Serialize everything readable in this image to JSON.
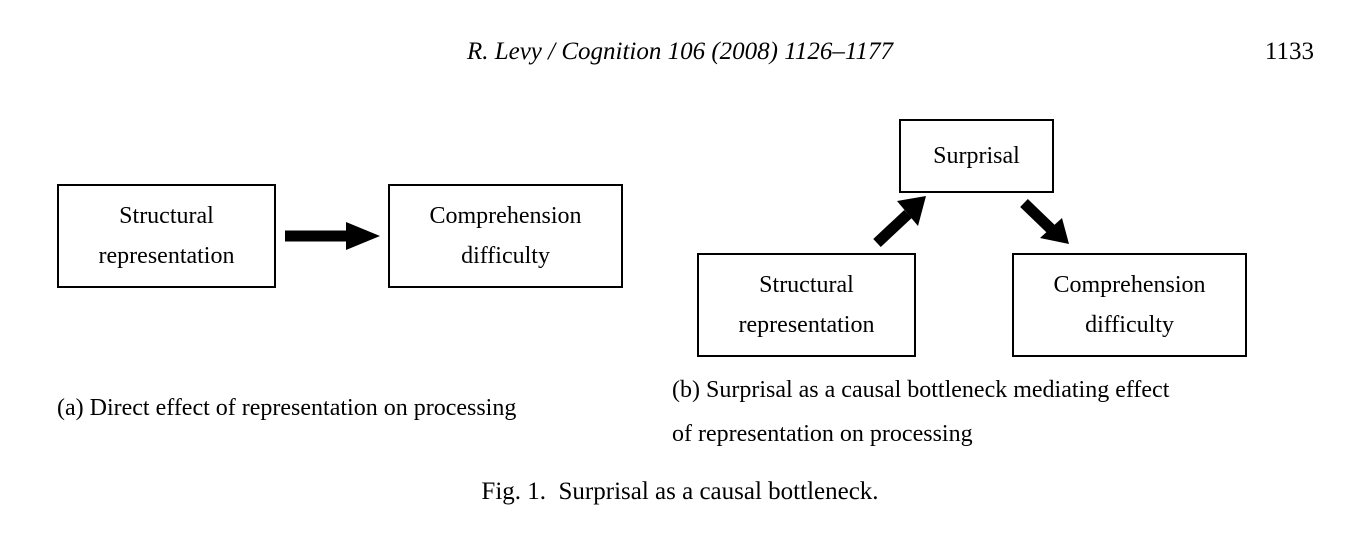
{
  "header": {
    "journal_line": "R. Levy / Cognition 106 (2008) 1126–1177",
    "page_number": "1133"
  },
  "figure": {
    "panel_a": {
      "box_left": {
        "line1": "Structural",
        "line2": "representation"
      },
      "box_right": {
        "line1": "Comprehension",
        "line2": "difficulty"
      },
      "caption": "(a) Direct effect of representation on processing"
    },
    "panel_b": {
      "box_top": {
        "line1": "Surprisal"
      },
      "box_left": {
        "line1": "Structural",
        "line2": "representation"
      },
      "box_right": {
        "line1": "Comprehension",
        "line2": "difficulty"
      },
      "caption_line1": "(b) Surprisal as a causal bottleneck mediating effect",
      "caption_line2": "of representation on processing"
    },
    "caption": "Fig. 1.  Surprisal as a causal bottleneck."
  }
}
